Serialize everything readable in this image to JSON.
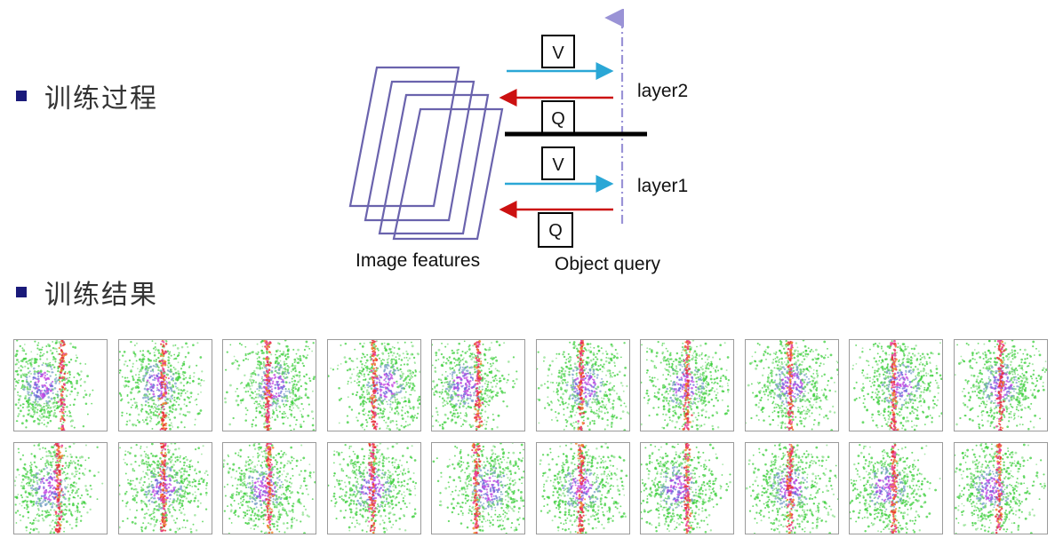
{
  "sections": {
    "training_process": "训练过程",
    "training_results": "训练结果"
  },
  "diagram": {
    "image_features_label": "Image features",
    "object_query_label": "Object query",
    "layer2_label": "layer2",
    "layer1_label": "layer1",
    "v_label": "V",
    "q_label": "Q",
    "colors": {
      "frame": "#6a63ad",
      "v_arrow": "#2aa7d6",
      "q_arrow": "#cc1111",
      "axis": "#9a93d6",
      "divider": "#000000"
    }
  },
  "results": {
    "rows": 2,
    "cols": 10
  }
}
